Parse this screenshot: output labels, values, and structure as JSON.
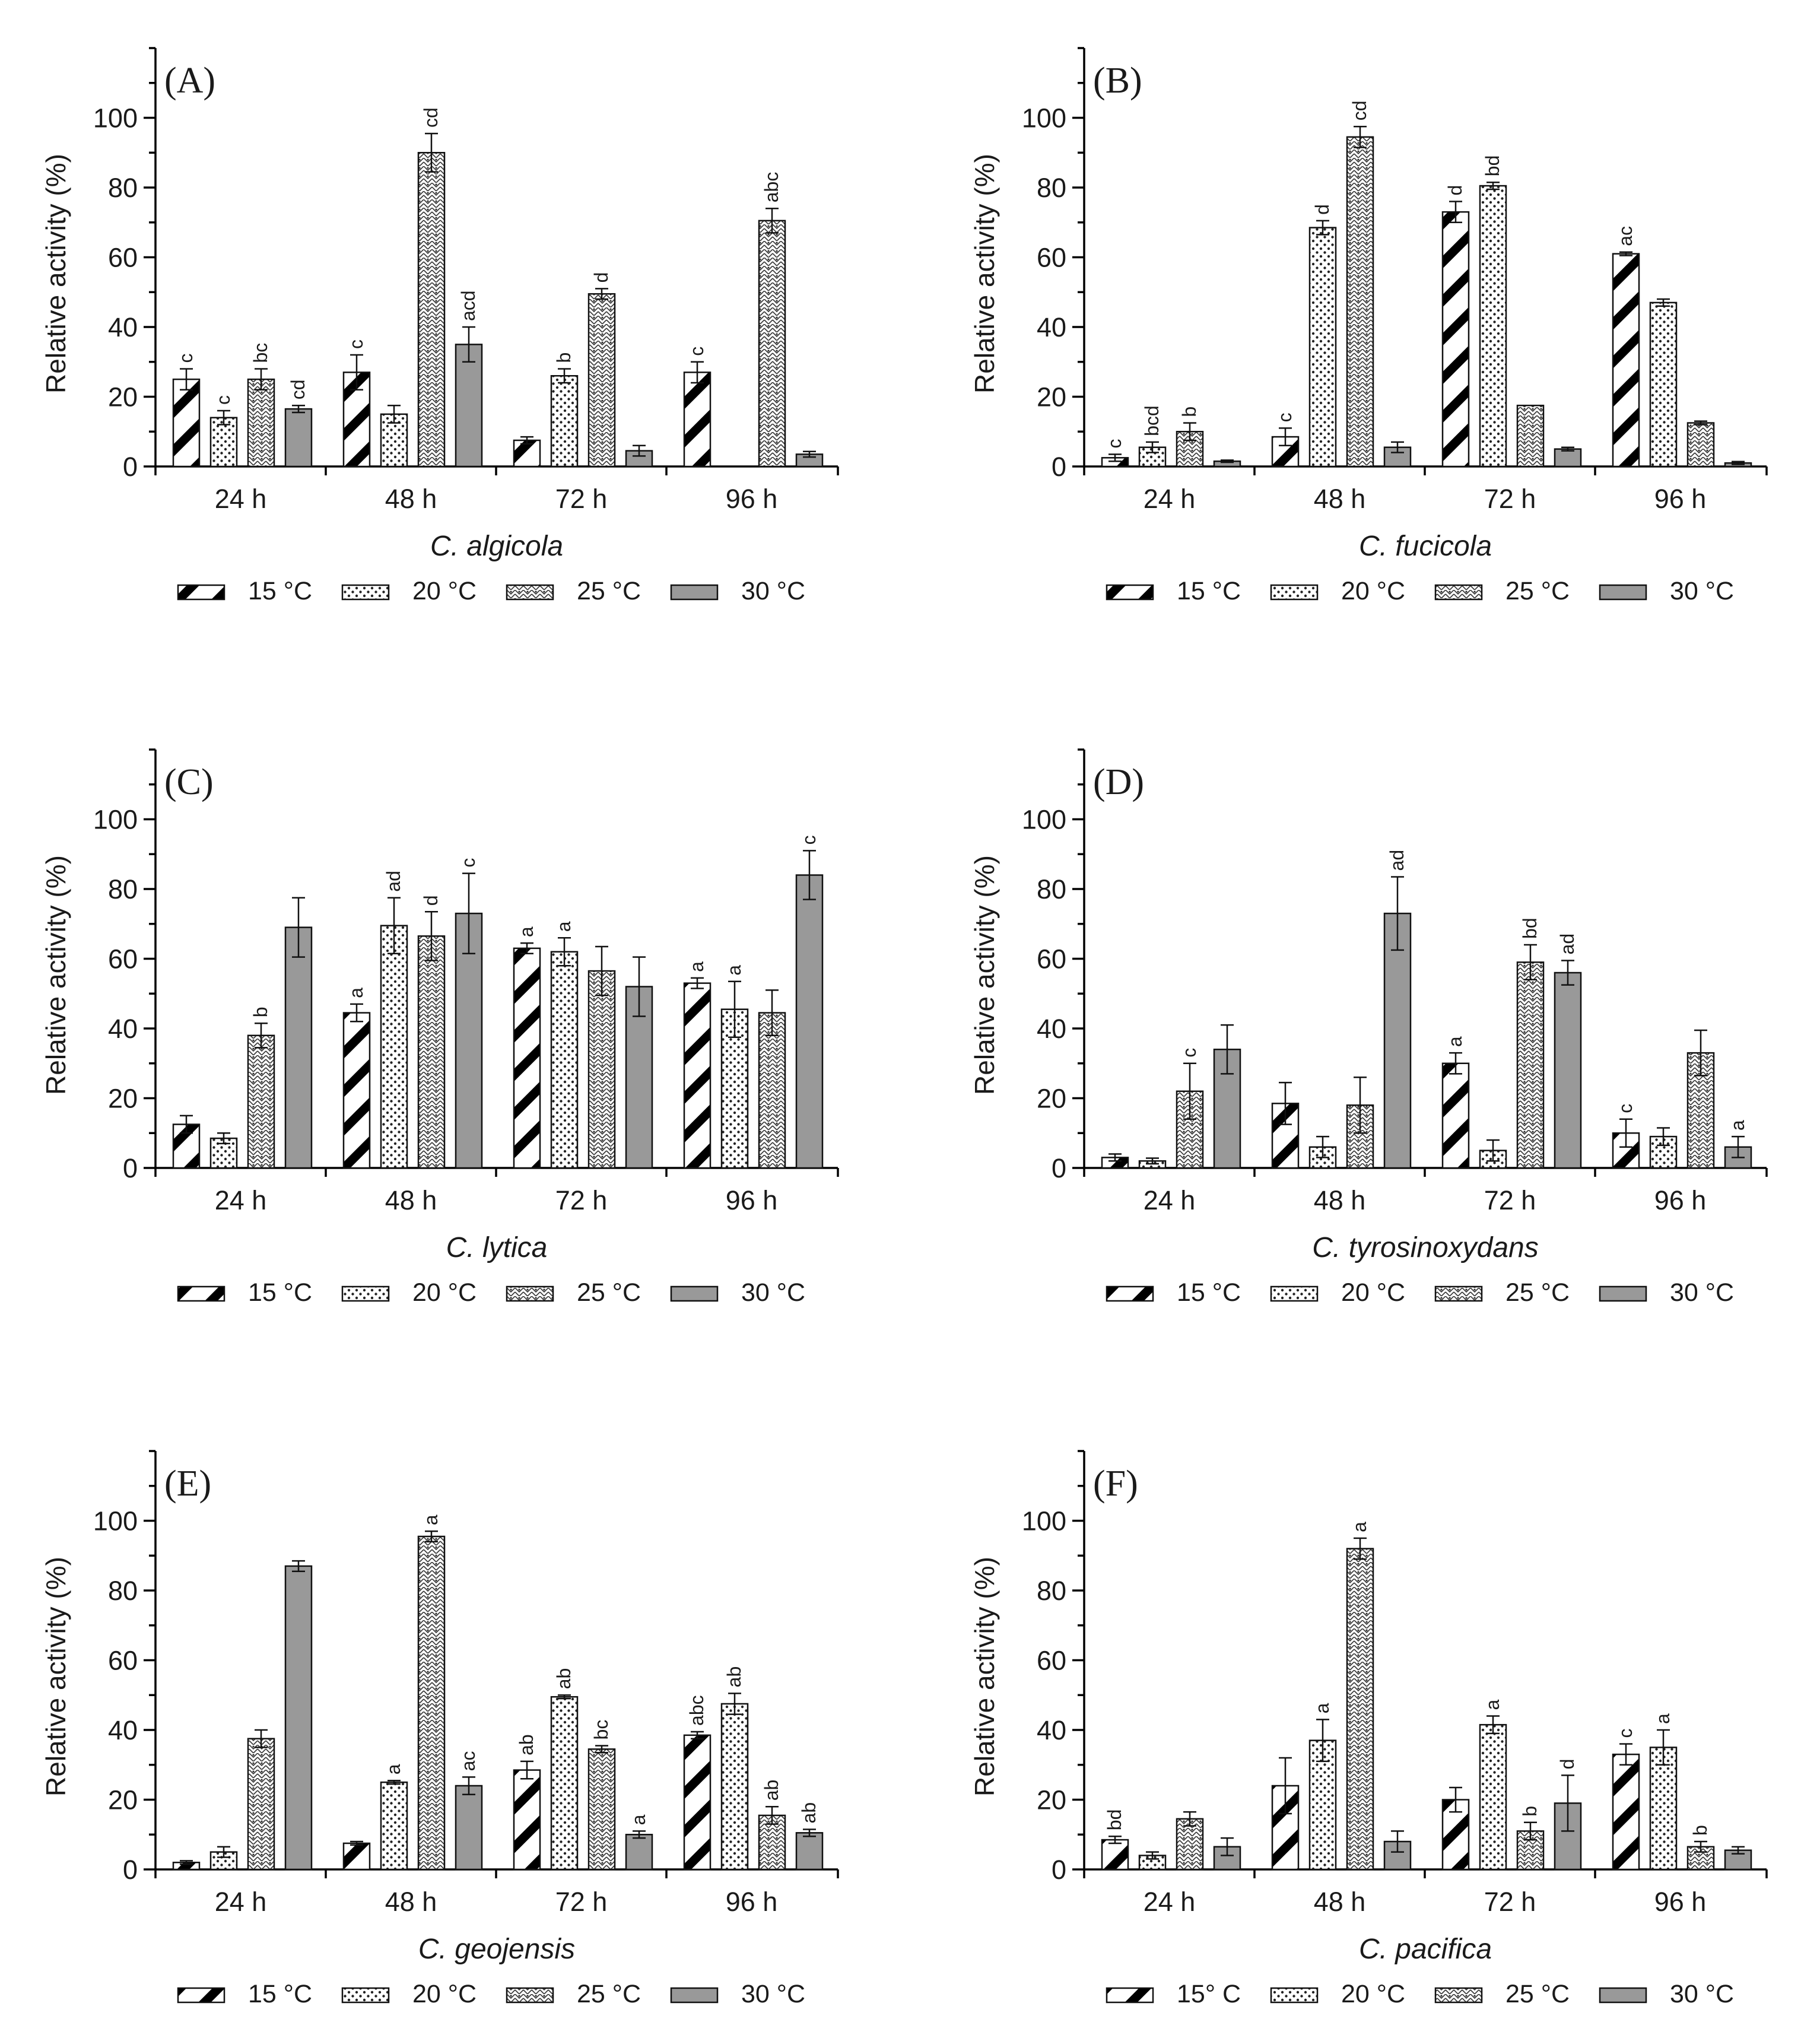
{
  "figure": {
    "legend_temperatures": [
      "15 °C",
      "20 °C",
      "25 °C",
      "30 °C"
    ],
    "ylabel": "Relative activity (%)",
    "yticks": [
      "0",
      "20",
      "40",
      "60",
      "80",
      "100"
    ],
    "time_points": [
      "24 h",
      "48 h",
      "72 h",
      "96 h"
    ],
    "colors": {
      "axis": "#000000",
      "solid_bar": "#999999",
      "hatch": "#000000"
    },
    "patterns": [
      "diagonal-thick",
      "dots",
      "crosshatch-dots",
      "solid-gray"
    ]
  },
  "chart_data": [
    {
      "type": "bar",
      "panel": "(A)",
      "title": "C. algicola",
      "xlabel": "C. algicola",
      "ylabel": "Relative activity (%)",
      "categories": [
        "24 h",
        "48 h",
        "72 h",
        "96 h"
      ],
      "ylim": [
        0,
        120
      ],
      "legend": [
        "15 °C",
        "20 °C",
        "25 °C",
        "30 °C"
      ],
      "series": [
        {
          "name": "15 °C",
          "values": [
            25,
            27,
            7.5,
            27
          ],
          "errors": [
            3,
            5,
            1,
            3
          ],
          "letters": [
            "c",
            "c",
            "",
            "c"
          ]
        },
        {
          "name": "20 °C",
          "values": [
            14,
            15,
            26,
            0
          ],
          "errors": [
            2,
            2.5,
            2,
            0
          ],
          "letters": [
            "c",
            "",
            "b",
            ""
          ]
        },
        {
          "name": "25 °C",
          "values": [
            25,
            90,
            49.5,
            70.5
          ],
          "errors": [
            3,
            5.5,
            1.5,
            3.5
          ],
          "letters": [
            "bc",
            "cd",
            "d",
            "abc"
          ]
        },
        {
          "name": "30 °C",
          "values": [
            16.5,
            35,
            4.5,
            3.5
          ],
          "errors": [
            1,
            5,
            1.5,
            0.8
          ],
          "letters": [
            "cd",
            "acd",
            "",
            ""
          ]
        }
      ]
    },
    {
      "type": "bar",
      "panel": "(B)",
      "title": "C. fucicola",
      "xlabel": "C. fucicola",
      "ylabel": "Relative activity (%)",
      "categories": [
        "24 h",
        "48 h",
        "72 h",
        "96 h"
      ],
      "ylim": [
        0,
        120
      ],
      "legend": [
        "15 °C",
        "20 °C",
        "25 °C",
        "30 °C"
      ],
      "series": [
        {
          "name": "15 °C",
          "values": [
            2.5,
            8.5,
            73,
            61
          ],
          "errors": [
            1,
            2.5,
            3,
            0.5
          ],
          "letters": [
            "c",
            "c",
            "d",
            "ac"
          ]
        },
        {
          "name": "20 °C",
          "values": [
            5.5,
            68.5,
            80.5,
            47
          ],
          "errors": [
            1.5,
            2,
            1,
            1
          ],
          "letters": [
            "bcd",
            "d",
            "bd",
            ""
          ]
        },
        {
          "name": "25 °C",
          "values": [
            10,
            94.5,
            17.5,
            12.5
          ],
          "errors": [
            2.5,
            3,
            0,
            0.5
          ],
          "letters": [
            "b",
            "cd",
            "",
            ""
          ]
        },
        {
          "name": "30 °C",
          "values": [
            1.5,
            5.5,
            5,
            1
          ],
          "errors": [
            0.3,
            1.5,
            0.5,
            0.4
          ],
          "letters": [
            "",
            "",
            "",
            ""
          ]
        }
      ]
    },
    {
      "type": "bar",
      "panel": "(C)",
      "title": "C. lytica",
      "xlabel": "C. lytica",
      "ylabel": "Relative activity (%)",
      "categories": [
        "24 h",
        "48 h",
        "72 h",
        "96 h"
      ],
      "ylim": [
        0,
        120
      ],
      "legend": [
        "15 °C",
        "20 °C",
        "25 °C",
        "30 °C"
      ],
      "series": [
        {
          "name": "15 °C",
          "values": [
            12.5,
            44.5,
            63,
            53
          ],
          "errors": [
            2.5,
            2.5,
            1.5,
            1.5
          ],
          "letters": [
            "",
            "a",
            "a",
            "a"
          ]
        },
        {
          "name": "20 °C",
          "values": [
            8.5,
            69.5,
            62,
            45.5
          ],
          "errors": [
            1.5,
            8,
            4,
            8
          ],
          "letters": [
            "",
            "ad",
            "a",
            "a"
          ]
        },
        {
          "name": "25 °C",
          "values": [
            38,
            66.5,
            56.5,
            44.5
          ],
          "errors": [
            3.5,
            7,
            7,
            6.5
          ],
          "letters": [
            "b",
            "d",
            "",
            ""
          ]
        },
        {
          "name": "30 °C",
          "values": [
            69,
            73,
            52,
            84
          ],
          "errors": [
            8.5,
            11.5,
            8.5,
            7
          ],
          "letters": [
            "",
            "c",
            "",
            "c"
          ]
        }
      ]
    },
    {
      "type": "bar",
      "panel": "(D)",
      "title": "C. tyrosinoxydans",
      "xlabel": "C. tyrosinoxydans",
      "ylabel": "Relative activity (%)",
      "categories": [
        "24 h",
        "48 h",
        "72 h",
        "96 h"
      ],
      "ylim": [
        0,
        120
      ],
      "legend": [
        "15 °C",
        "20 °C",
        "25 °C",
        "30 °C"
      ],
      "series": [
        {
          "name": "15 °C",
          "values": [
            3,
            18.5,
            30,
            10
          ],
          "errors": [
            1,
            6,
            3,
            4
          ],
          "letters": [
            "",
            "",
            "a",
            "c"
          ]
        },
        {
          "name": "20 °C",
          "values": [
            2,
            6,
            5,
            9
          ],
          "errors": [
            0.8,
            3,
            3,
            2.5
          ],
          "letters": [
            "",
            "",
            "",
            ""
          ]
        },
        {
          "name": "25 °C",
          "values": [
            22,
            18,
            59,
            33
          ],
          "errors": [
            8,
            8,
            5,
            6.5
          ],
          "letters": [
            "c",
            "",
            "bd",
            ""
          ]
        },
        {
          "name": "30 °C",
          "values": [
            34,
            73,
            56,
            6
          ],
          "errors": [
            7,
            10.5,
            3.5,
            3
          ],
          "letters": [
            "",
            "ad",
            "ad",
            "a"
          ]
        }
      ]
    },
    {
      "type": "bar",
      "panel": "(E)",
      "title": "C. geojensis",
      "xlabel": "C. geojensis",
      "ylabel": "Relative activity (%)",
      "categories": [
        "24 h",
        "48 h",
        "72 h",
        "96 h"
      ],
      "ylim": [
        0,
        120
      ],
      "legend": [
        "15 °C",
        "20 °C",
        "25 °C",
        "30 °C"
      ],
      "series": [
        {
          "name": "15 °C",
          "values": [
            2,
            7.5,
            28.5,
            38.5
          ],
          "errors": [
            0.5,
            0.5,
            2.5,
            1
          ],
          "letters": [
            "",
            "",
            "ab",
            "abc"
          ]
        },
        {
          "name": "20 °C",
          "values": [
            5,
            25,
            49.5,
            47.5
          ],
          "errors": [
            1.5,
            0.5,
            0.5,
            3
          ],
          "letters": [
            "",
            "a",
            "ab",
            "ab"
          ]
        },
        {
          "name": "25 °C",
          "values": [
            37.5,
            95.5,
            34.5,
            15.5
          ],
          "errors": [
            2.5,
            1.5,
            1,
            2.5
          ],
          "letters": [
            "",
            "a",
            "bc",
            "ab"
          ]
        },
        {
          "name": "30 °C",
          "values": [
            87,
            24,
            10,
            10.5
          ],
          "errors": [
            1.5,
            2.5,
            1,
            1
          ],
          "letters": [
            "",
            "ac",
            "a",
            "ab"
          ]
        }
      ]
    },
    {
      "type": "bar",
      "panel": "(F)",
      "title": "C. pacifica",
      "xlabel": "C. pacifica",
      "ylabel": "Relative activity (%)",
      "categories": [
        "24 h",
        "48 h",
        "72 h",
        "96 h"
      ],
      "ylim": [
        0,
        120
      ],
      "legend": [
        "15° C",
        "20 °C",
        "25 °C",
        "30 °C"
      ],
      "series": [
        {
          "name": "15° C",
          "values": [
            8.5,
            24,
            20,
            33
          ],
          "errors": [
            1,
            8,
            3.5,
            3
          ],
          "letters": [
            "bd",
            "",
            "",
            "c"
          ]
        },
        {
          "name": "20 °C",
          "values": [
            4,
            37,
            41.5,
            35
          ],
          "errors": [
            1,
            6,
            2.5,
            5
          ],
          "letters": [
            "",
            "a",
            "a",
            "a"
          ]
        },
        {
          "name": "25 °C",
          "values": [
            14.5,
            92,
            11,
            6.5
          ],
          "errors": [
            2,
            3,
            2.5,
            1.5
          ],
          "letters": [
            "",
            "a",
            "b",
            "b"
          ]
        },
        {
          "name": "30 °C",
          "values": [
            6.5,
            8,
            19,
            5.5
          ],
          "errors": [
            2.5,
            3,
            8,
            1
          ],
          "letters": [
            "",
            "",
            "d",
            ""
          ]
        }
      ]
    }
  ]
}
